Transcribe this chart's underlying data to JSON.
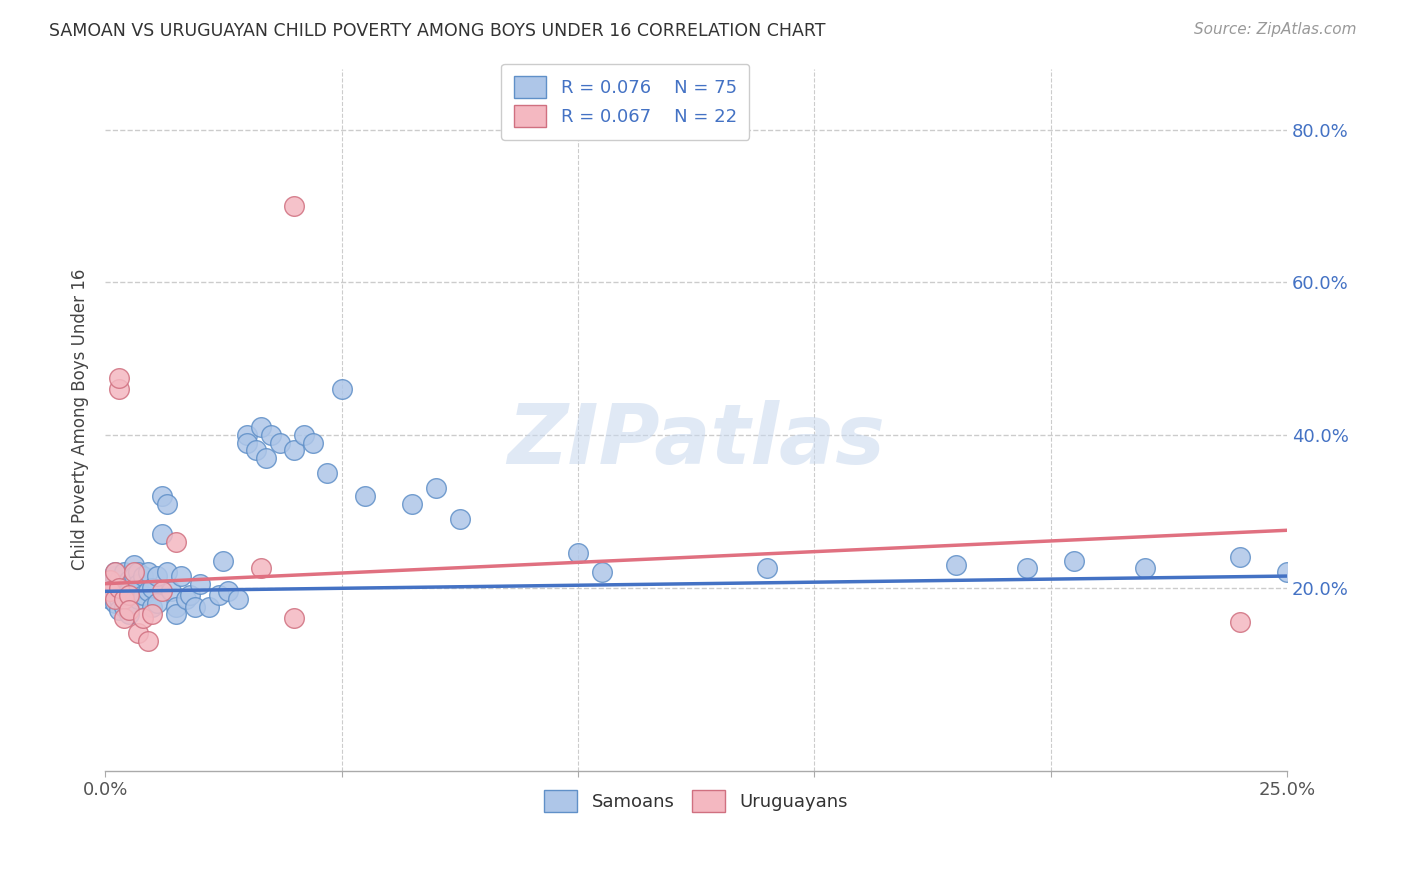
{
  "title": "SAMOAN VS URUGUAYAN CHILD POVERTY AMONG BOYS UNDER 16 CORRELATION CHART",
  "source": "Source: ZipAtlas.com",
  "ylabel": "Child Poverty Among Boys Under 16",
  "xlim": [
    0.0,
    0.25
  ],
  "ylim": [
    -0.04,
    0.88
  ],
  "watermark": "ZIPatlas",
  "samoan_color": "#aec6e8",
  "samoan_edge": "#6090c8",
  "uruguayan_color": "#f4b8c1",
  "uruguayan_edge": "#d07080",
  "line_samoan_color": "#4472c4",
  "line_uruguayan_color": "#e07080",
  "background_color": "#ffffff",
  "grid_color": "#cccccc",
  "samoans_x": [
    0.001,
    0.001,
    0.001,
    0.002,
    0.002,
    0.002,
    0.002,
    0.003,
    0.003,
    0.003,
    0.003,
    0.004,
    0.004,
    0.004,
    0.004,
    0.005,
    0.005,
    0.005,
    0.005,
    0.006,
    0.006,
    0.006,
    0.007,
    0.007,
    0.007,
    0.008,
    0.008,
    0.009,
    0.009,
    0.01,
    0.01,
    0.011,
    0.011,
    0.012,
    0.012,
    0.013,
    0.013,
    0.014,
    0.015,
    0.015,
    0.016,
    0.017,
    0.018,
    0.019,
    0.02,
    0.022,
    0.024,
    0.025,
    0.026,
    0.028,
    0.03,
    0.03,
    0.032,
    0.033,
    0.034,
    0.035,
    0.037,
    0.04,
    0.042,
    0.044,
    0.047,
    0.05,
    0.055,
    0.065,
    0.07,
    0.075,
    0.1,
    0.105,
    0.14,
    0.18,
    0.195,
    0.205,
    0.22,
    0.24,
    0.25
  ],
  "samoans_y": [
    0.21,
    0.2,
    0.185,
    0.215,
    0.22,
    0.195,
    0.18,
    0.21,
    0.2,
    0.185,
    0.17,
    0.22,
    0.2,
    0.19,
    0.175,
    0.21,
    0.195,
    0.18,
    0.165,
    0.23,
    0.215,
    0.195,
    0.22,
    0.205,
    0.185,
    0.215,
    0.19,
    0.22,
    0.195,
    0.2,
    0.175,
    0.215,
    0.18,
    0.32,
    0.27,
    0.31,
    0.22,
    0.195,
    0.175,
    0.165,
    0.215,
    0.185,
    0.19,
    0.175,
    0.205,
    0.175,
    0.19,
    0.235,
    0.195,
    0.185,
    0.4,
    0.39,
    0.38,
    0.41,
    0.37,
    0.4,
    0.39,
    0.38,
    0.4,
    0.39,
    0.35,
    0.46,
    0.32,
    0.31,
    0.33,
    0.29,
    0.245,
    0.22,
    0.225,
    0.23,
    0.225,
    0.235,
    0.225,
    0.24,
    0.22
  ],
  "uruguayans_x": [
    0.001,
    0.001,
    0.002,
    0.002,
    0.003,
    0.003,
    0.003,
    0.004,
    0.004,
    0.005,
    0.005,
    0.006,
    0.007,
    0.008,
    0.009,
    0.01,
    0.012,
    0.015,
    0.033,
    0.04,
    0.04,
    0.24
  ],
  "uruguayans_y": [
    0.21,
    0.195,
    0.22,
    0.185,
    0.46,
    0.475,
    0.2,
    0.185,
    0.16,
    0.19,
    0.17,
    0.22,
    0.14,
    0.16,
    0.13,
    0.165,
    0.195,
    0.26,
    0.225,
    0.7,
    0.16,
    0.155
  ],
  "line_sam_x0": 0.0,
  "line_sam_y0": 0.195,
  "line_sam_x1": 0.25,
  "line_sam_y1": 0.215,
  "line_uru_x0": 0.0,
  "line_uru_y0": 0.205,
  "line_uru_x1": 0.25,
  "line_uru_y1": 0.275
}
